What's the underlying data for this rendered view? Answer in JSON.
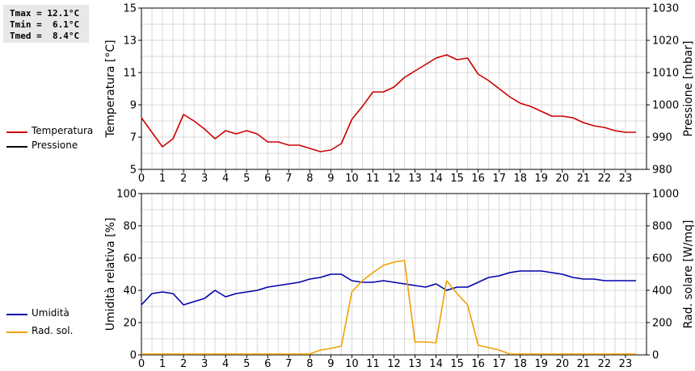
{
  "stats": {
    "tmax": "Tmax = 12.1°C",
    "tmin": "Tmin =  6.1°C",
    "tmed": "Tmed =  8.4°C"
  },
  "legend_top": [
    {
      "label": "Temperatura",
      "color": "#cc0000"
    },
    {
      "label": "Pressione",
      "color": "#000000"
    }
  ],
  "legend_bottom": [
    {
      "label": "Umidità",
      "color": "#0000aa"
    },
    {
      "label": "Rad. sol.",
      "color": "#f0a000"
    }
  ],
  "chart_data": [
    {
      "type": "line",
      "ylabel": "Temperatura [°C]",
      "ylabel_right": "Pressione [mbar]",
      "ylim": [
        5,
        15
      ],
      "y_ticks": [
        5,
        7,
        9,
        11,
        13,
        15
      ],
      "ylim_right": [
        980,
        1030
      ],
      "y_ticks_right": [
        980,
        990,
        1000,
        1010,
        1020,
        1030
      ],
      "xlim": [
        0,
        24
      ],
      "x_ticks": [
        0,
        1,
        2,
        3,
        4,
        5,
        6,
        7,
        8,
        9,
        10,
        11,
        12,
        13,
        14,
        15,
        16,
        17,
        18,
        19,
        20,
        21,
        22,
        23
      ],
      "grid": true,
      "series": [
        {
          "name": "Temperatura",
          "color": "#cc0000",
          "axis": "left",
          "x": [
            0,
            0.5,
            1,
            1.5,
            2,
            2.5,
            3,
            3.5,
            4,
            4.5,
            5,
            5.5,
            6,
            6.5,
            7,
            7.5,
            8,
            8.5,
            9,
            9.5,
            10,
            10.5,
            11,
            11.5,
            12,
            12.5,
            13,
            13.5,
            14,
            14.5,
            15,
            15.5,
            16,
            16.5,
            17,
            17.5,
            18,
            18.5,
            19,
            19.5,
            20,
            20.5,
            21,
            21.5,
            22,
            22.5,
            23,
            23.5
          ],
          "y": [
            8.2,
            7.3,
            6.4,
            6.9,
            8.4,
            8.0,
            7.5,
            6.9,
            7.4,
            7.2,
            7.4,
            7.2,
            6.7,
            6.7,
            6.5,
            6.5,
            6.3,
            6.1,
            6.2,
            6.6,
            8.1,
            8.9,
            9.8,
            9.8,
            10.1,
            10.7,
            11.1,
            11.5,
            11.9,
            12.1,
            11.8,
            11.9,
            10.9,
            10.5,
            10.0,
            9.5,
            9.1,
            8.9,
            8.6,
            8.3,
            8.3,
            8.2,
            7.9,
            7.7,
            7.6,
            7.4,
            7.3,
            7.3
          ]
        },
        {
          "name": "Pressione",
          "color": "#000000",
          "axis": "right",
          "x": [],
          "y": []
        }
      ]
    },
    {
      "type": "line",
      "ylabel": "Umidità relativa [%]",
      "ylabel_right": "Rad. solare [W/mq]",
      "ylim": [
        0,
        100
      ],
      "y_ticks": [
        0,
        20,
        40,
        60,
        80,
        100
      ],
      "ylim_right": [
        0,
        1000
      ],
      "y_ticks_right": [
        0,
        200,
        400,
        600,
        800,
        1000
      ],
      "xlim": [
        0,
        24
      ],
      "x_ticks": [
        0,
        1,
        2,
        3,
        4,
        5,
        6,
        7,
        8,
        9,
        10,
        11,
        12,
        13,
        14,
        15,
        16,
        17,
        18,
        19,
        20,
        21,
        22,
        23
      ],
      "grid": true,
      "series": [
        {
          "name": "Umidità",
          "color": "#0000aa",
          "axis": "left",
          "x": [
            0,
            0.5,
            1,
            1.5,
            2,
            2.5,
            3,
            3.5,
            4,
            4.5,
            5,
            5.5,
            6,
            6.5,
            7,
            7.5,
            8,
            8.5,
            9,
            9.5,
            10,
            10.5,
            11,
            11.5,
            12,
            12.5,
            13,
            13.5,
            14,
            14.5,
            15,
            15.5,
            16,
            16.5,
            17,
            17.5,
            18,
            18.5,
            19,
            19.5,
            20,
            20.5,
            21,
            21.5,
            22,
            22.5,
            23,
            23.5
          ],
          "y": [
            31,
            38,
            39,
            38,
            31,
            33,
            35,
            40,
            36,
            38,
            39,
            40,
            42,
            43,
            44,
            45,
            47,
            48,
            50,
            50,
            46,
            45,
            45,
            46,
            45,
            44,
            43,
            42,
            44,
            40,
            42,
            42,
            45,
            48,
            49,
            51,
            52,
            52,
            52,
            51,
            50,
            48,
            47,
            47,
            46,
            46,
            46,
            46
          ]
        },
        {
          "name": "Rad. sol.",
          "color": "#f0a000",
          "axis": "right",
          "x": [
            0,
            1,
            2,
            3,
            4,
            5,
            6,
            7,
            8,
            8.5,
            9,
            9.5,
            10,
            10.5,
            11,
            11.5,
            12,
            12.5,
            13,
            13.5,
            14,
            14.5,
            15,
            15.5,
            16,
            16.5,
            17,
            17.5,
            18,
            19,
            20,
            21,
            22,
            23,
            23.5
          ],
          "y": [
            5,
            5,
            5,
            5,
            5,
            5,
            5,
            5,
            5,
            30,
            40,
            55,
            390,
            460,
            510,
            555,
            575,
            585,
            80,
            80,
            75,
            460,
            380,
            310,
            60,
            45,
            30,
            5,
            5,
            5,
            5,
            5,
            5,
            5,
            5
          ]
        }
      ]
    }
  ]
}
